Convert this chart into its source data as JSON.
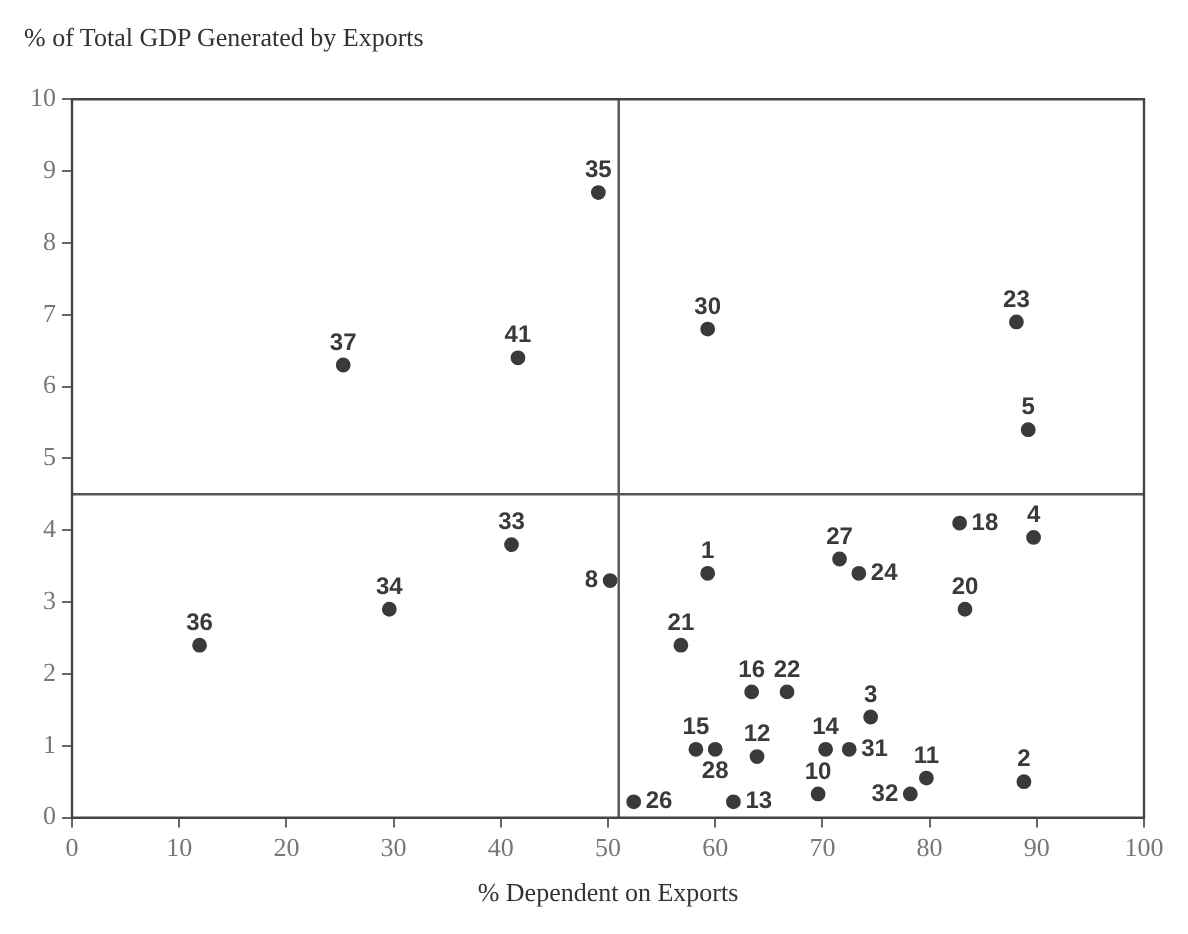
{
  "chart_data": {
    "type": "scatter",
    "title": "% of Total GDP Generated by Exports",
    "xlabel": "% Dependent on Exports",
    "x": [
      25.3,
      41.6,
      49.1,
      59.3,
      88.1,
      89.2,
      11.9,
      29.6,
      41.0,
      82.8,
      89.7,
      50.2,
      59.3,
      71.6,
      73.4,
      83.3,
      56.8,
      63.4,
      66.7,
      74.5,
      58.2,
      60.0,
      63.9,
      70.3,
      72.5,
      88.8,
      79.7,
      78.2,
      69.6,
      61.7,
      52.4
    ],
    "series": [
      {
        "color": "#3a3a3a",
        "values": [
          6.3,
          6.4,
          8.7,
          6.8,
          6.9,
          5.4,
          2.4,
          2.9,
          3.8,
          4.1,
          3.9,
          3.3,
          3.4,
          3.6,
          3.4,
          2.9,
          2.4,
          1.75,
          1.75,
          1.4,
          0.95,
          0.95,
          0.85,
          0.95,
          0.95,
          0.5,
          0.55,
          0.33,
          0.33,
          0.22,
          0.22
        ]
      }
    ],
    "annotations": [
      {
        "text": "37",
        "x": 25.3,
        "y": 6.3
      },
      {
        "text": "41",
        "x": 41.6,
        "y": 6.4
      },
      {
        "text": "35",
        "x": 49.1,
        "y": 8.7
      },
      {
        "text": "30",
        "x": 59.3,
        "y": 6.8
      },
      {
        "text": "23",
        "x": 88.1,
        "y": 6.9
      },
      {
        "text": "5",
        "x": 89.2,
        "y": 5.4
      },
      {
        "text": "36",
        "x": 11.9,
        "y": 2.4
      },
      {
        "text": "34",
        "x": 29.6,
        "y": 2.9
      },
      {
        "text": "33",
        "x": 41.0,
        "y": 3.8
      },
      {
        "text": "18",
        "x": 82.8,
        "y": 4.1
      },
      {
        "text": "4",
        "x": 89.7,
        "y": 3.9
      },
      {
        "text": "8",
        "x": 50.2,
        "y": 3.3
      },
      {
        "text": "1",
        "x": 59.3,
        "y": 3.4
      },
      {
        "text": "27",
        "x": 71.6,
        "y": 3.6
      },
      {
        "text": "24",
        "x": 73.4,
        "y": 3.4
      },
      {
        "text": "20",
        "x": 83.3,
        "y": 2.9
      },
      {
        "text": "21",
        "x": 56.8,
        "y": 2.4
      },
      {
        "text": "16",
        "x": 63.4,
        "y": 1.75
      },
      {
        "text": "22",
        "x": 66.7,
        "y": 1.75
      },
      {
        "text": "3",
        "x": 74.5,
        "y": 1.4
      },
      {
        "text": "15",
        "x": 58.2,
        "y": 0.95
      },
      {
        "text": "28",
        "x": 60.0,
        "y": 0.95
      },
      {
        "text": "12",
        "x": 63.9,
        "y": 0.85
      },
      {
        "text": "14",
        "x": 70.3,
        "y": 0.95
      },
      {
        "text": "31",
        "x": 72.5,
        "y": 0.95
      },
      {
        "text": "2",
        "x": 88.8,
        "y": 0.5
      },
      {
        "text": "11",
        "x": 79.7,
        "y": 0.55
      },
      {
        "text": "32",
        "x": 78.2,
        "y": 0.33
      },
      {
        "text": "10",
        "x": 69.6,
        "y": 0.33
      },
      {
        "text": "13",
        "x": 61.7,
        "y": 0.22
      },
      {
        "text": "26",
        "x": 52.4,
        "y": 0.22
      }
    ],
    "ref_lines": [
      {
        "axis": "x",
        "value": 51,
        "color": "#555555"
      },
      {
        "axis": "y",
        "value": 4.5,
        "color": "#555555"
      }
    ],
    "xlim": [
      0,
      100
    ],
    "xticks": [
      0,
      10,
      20,
      30,
      40,
      50,
      60,
      70,
      80,
      90,
      100
    ],
    "ylim": [
      0,
      10
    ],
    "yticks": [
      0,
      1,
      2,
      3,
      4,
      5,
      6,
      7,
      8,
      9,
      10
    ],
    "grid": false,
    "legend": false,
    "marker": "circle"
  }
}
